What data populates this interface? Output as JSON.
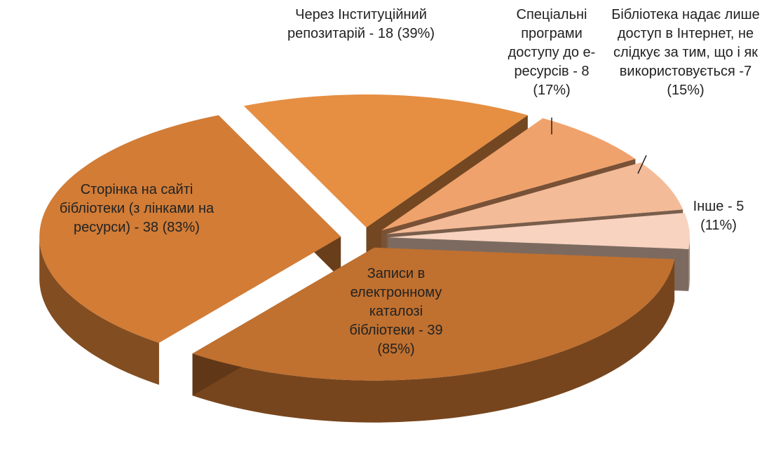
{
  "chart_data": {
    "type": "pie",
    "categories": [
      "Записи в електронному каталозі бібліотеки - 39 (85%)",
      "Сторінка на сайті бібліотеки (з лінками на ресурси) - 38 (83%)",
      "Через Інституційний репозитарій - 18 (39%)",
      "Спеціальні програми доступу до е-ресурсів - 8 (17%)",
      "Бібліотека надає лише доступ в Інтернет, не слідкує за тим, що і як використовується -7 (15%)",
      "Інше - 5 (11%)"
    ],
    "values": [
      39,
      38,
      18,
      8,
      7,
      5
    ],
    "colors": [
      "#c0702f",
      "#d27c36",
      "#e68e42",
      "#f0a26c",
      "#f4bb98",
      "#f7d3c0"
    ],
    "three_d": true,
    "exploded": true
  }
}
